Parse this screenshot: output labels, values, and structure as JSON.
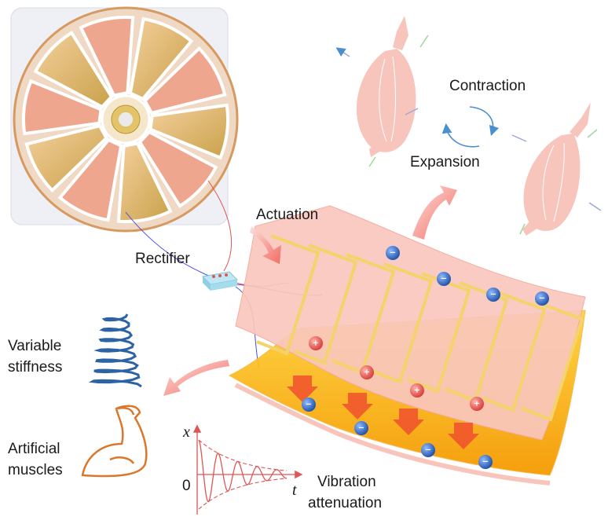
{
  "labels": {
    "contraction": "Contraction",
    "expansion": "Expansion",
    "actuation": "Actuation",
    "rectifier": "Rectifier",
    "variable_stiffness": [
      "Variable",
      "stiffness"
    ],
    "artificial_muscles": [
      "Artificial",
      "muscles"
    ],
    "vibration_attenuation": [
      "Vibration",
      "attenuation"
    ]
  },
  "graph": {
    "y_axis_label": "x",
    "origin_label": "0",
    "x_axis_label": "t"
  },
  "charge_signs": {
    "positive": "+",
    "negative": "−"
  },
  "colors": {
    "film_top": "#f9c7bd",
    "film_bottom": "#f7b500",
    "electrode": "#f3d36a",
    "electron": "#2f6fd0",
    "positive_charge": "#e4504b",
    "muscle": "#f7c5bb",
    "arrow": "#f36b63",
    "spring": "#2c63a5",
    "arm_outline": "#d9782c",
    "cycle_arrow": "#4a8fd0"
  },
  "icons": [
    "teng-disk-device",
    "rectifier-chip",
    "muscle",
    "spring",
    "flexed-arm",
    "cycle-arrows",
    "damped-oscillation-graph"
  ]
}
